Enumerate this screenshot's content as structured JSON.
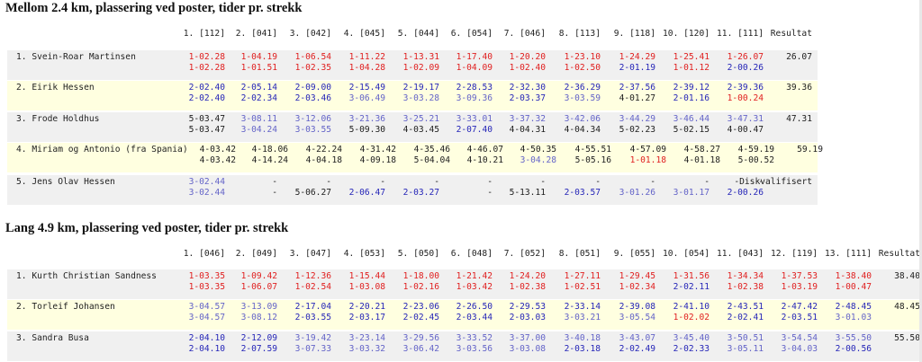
{
  "colors": {
    "red": "#e02020",
    "darkred": "#c21414",
    "navy": "#2626b8",
    "blue": "#4b4bd2",
    "lav": "#6464c8",
    "black": "#1e1e1e",
    "band_gray": "#f0f0f0",
    "band_yellow": "#ffffe0"
  },
  "sections": [
    {
      "title": "Mellom 2.4 km, plassering ved poster, tider pr. strekk",
      "headers": [
        "1. [112]",
        "2. [041]",
        "3. [042]",
        "4. [045]",
        "5. [044]",
        "6. [054]",
        "7. [046]",
        "8. [113]",
        "9. [118]",
        "10. [120]",
        "11. [111]",
        "Resultat"
      ],
      "rows": [
        {
          "band": "gray",
          "name": "1. Svein-Roar Martinsen",
          "line1": [
            [
              "1-02.28",
              "red"
            ],
            [
              "1-04.19",
              "red"
            ],
            [
              "1-06.54",
              "red"
            ],
            [
              "1-11.22",
              "red"
            ],
            [
              "1-13.31",
              "red"
            ],
            [
              "1-17.40",
              "red"
            ],
            [
              "1-20.20",
              "red"
            ],
            [
              "1-23.10",
              "red"
            ],
            [
              "1-24.29",
              "red"
            ],
            [
              "1-25.41",
              "red"
            ],
            [
              "1-26.07",
              "red"
            ],
            [
              "26.07",
              "black"
            ]
          ],
          "line2": [
            [
              "1-02.28",
              "red"
            ],
            [
              "1-01.51",
              "red"
            ],
            [
              "1-02.35",
              "red"
            ],
            [
              "1-04.28",
              "red"
            ],
            [
              "1-02.09",
              "red"
            ],
            [
              "1-04.09",
              "red"
            ],
            [
              "1-02.40",
              "red"
            ],
            [
              "1-02.50",
              "red"
            ],
            [
              "2-01.19",
              "navy"
            ],
            [
              "1-01.12",
              "red"
            ],
            [
              "2-00.26",
              "navy"
            ],
            [
              "",
              ""
            ]
          ]
        },
        {
          "band": "yellow",
          "name": "2. Eirik Hessen",
          "line1": [
            [
              "2-02.40",
              "navy"
            ],
            [
              "2-05.14",
              "navy"
            ],
            [
              "2-09.00",
              "navy"
            ],
            [
              "2-15.49",
              "navy"
            ],
            [
              "2-19.17",
              "navy"
            ],
            [
              "2-28.53",
              "navy"
            ],
            [
              "2-32.30",
              "navy"
            ],
            [
              "2-36.29",
              "navy"
            ],
            [
              "2-37.56",
              "navy"
            ],
            [
              "2-39.12",
              "navy"
            ],
            [
              "2-39.36",
              "navy"
            ],
            [
              "39.36",
              "black"
            ]
          ],
          "line2": [
            [
              "2-02.40",
              "navy"
            ],
            [
              "2-02.34",
              "navy"
            ],
            [
              "2-03.46",
              "navy"
            ],
            [
              "3-06.49",
              "lav"
            ],
            [
              "3-03.28",
              "lav"
            ],
            [
              "3-09.36",
              "lav"
            ],
            [
              "2-03.37",
              "navy"
            ],
            [
              "3-03.59",
              "lav"
            ],
            [
              "4-01.27",
              "black"
            ],
            [
              "2-01.16",
              "navy"
            ],
            [
              "1-00.24",
              "red"
            ],
            [
              "",
              ""
            ]
          ]
        },
        {
          "band": "gray",
          "name": "3. Frode Holdhus",
          "line1": [
            [
              "5-03.47",
              "black"
            ],
            [
              "3-08.11",
              "lav"
            ],
            [
              "3-12.06",
              "lav"
            ],
            [
              "3-21.36",
              "lav"
            ],
            [
              "3-25.21",
              "lav"
            ],
            [
              "3-33.01",
              "lav"
            ],
            [
              "3-37.32",
              "lav"
            ],
            [
              "3-42.06",
              "lav"
            ],
            [
              "3-44.29",
              "lav"
            ],
            [
              "3-46.44",
              "lav"
            ],
            [
              "3-47.31",
              "lav"
            ],
            [
              "47.31",
              "black"
            ]
          ],
          "line2": [
            [
              "5-03.47",
              "black"
            ],
            [
              "3-04.24",
              "lav"
            ],
            [
              "3-03.55",
              "lav"
            ],
            [
              "5-09.30",
              "black"
            ],
            [
              "4-03.45",
              "black"
            ],
            [
              "2-07.40",
              "navy"
            ],
            [
              "4-04.31",
              "black"
            ],
            [
              "4-04.34",
              "black"
            ],
            [
              "5-02.23",
              "black"
            ],
            [
              "5-02.15",
              "black"
            ],
            [
              "4-00.47",
              "black"
            ],
            [
              "",
              ""
            ]
          ]
        },
        {
          "band": "yellow",
          "name": "4. Miriam og Antonio (fra Spania)",
          "shift": 12,
          "line1": [
            [
              "4-03.42",
              "black"
            ],
            [
              "4-18.06",
              "black"
            ],
            [
              "4-22.24",
              "black"
            ],
            [
              "4-31.42",
              "black"
            ],
            [
              "4-35.46",
              "black"
            ],
            [
              "4-46.07",
              "black"
            ],
            [
              "4-50.35",
              "black"
            ],
            [
              "4-55.51",
              "black"
            ],
            [
              "4-57.09",
              "black"
            ],
            [
              "4-58.27",
              "black"
            ],
            [
              "4-59.19",
              "black"
            ],
            [
              "59.19",
              "black"
            ]
          ],
          "line2": [
            [
              "4-03.42",
              "black"
            ],
            [
              "4-14.24",
              "black"
            ],
            [
              "4-04.18",
              "black"
            ],
            [
              "4-09.18",
              "black"
            ],
            [
              "5-04.04",
              "black"
            ],
            [
              "4-10.21",
              "black"
            ],
            [
              "3-04.28",
              "lav"
            ],
            [
              "5-05.16",
              "black"
            ],
            [
              "1-01.18",
              "red"
            ],
            [
              "4-01.18",
              "black"
            ],
            [
              "5-00.52",
              "black"
            ],
            [
              "",
              ""
            ]
          ]
        },
        {
          "band": "gray",
          "name": "5. Jens Olav Hessen",
          "line1": [
            [
              "3-02.44",
              "lav"
            ],
            [
              "-",
              "black"
            ],
            [
              "-",
              "black"
            ],
            [
              "-",
              "black"
            ],
            [
              "-",
              "black"
            ],
            [
              "-",
              "black"
            ],
            [
              "-",
              "black"
            ],
            [
              "-",
              "black"
            ],
            [
              "-",
              "black"
            ],
            [
              "-",
              "black"
            ],
            [
              "-",
              "black"
            ],
            [
              "-Diskvalifisert",
              "black"
            ]
          ],
          "line2": [
            [
              "3-02.44",
              "lav"
            ],
            [
              "-",
              "black"
            ],
            [
              "5-06.27",
              "black"
            ],
            [
              "2-06.47",
              "navy"
            ],
            [
              "2-03.27",
              "navy"
            ],
            [
              "-",
              "black"
            ],
            [
              "5-13.11",
              "black"
            ],
            [
              "2-03.57",
              "navy"
            ],
            [
              "3-01.26",
              "lav"
            ],
            [
              "3-01.17",
              "lav"
            ],
            [
              "2-00.26",
              "navy"
            ],
            [
              "",
              ""
            ]
          ]
        }
      ]
    },
    {
      "title": "Lang 4.9 km, plassering ved poster, tider pr. strekk",
      "headers": [
        "1. [046]",
        "2. [049]",
        "3. [047]",
        "4. [053]",
        "5. [050]",
        "6. [048]",
        "7. [052]",
        "8. [051]",
        "9. [055]",
        "10. [054]",
        "11. [043]",
        "12. [119]",
        "13. [111]",
        "Resultat"
      ],
      "rows": [
        {
          "band": "gray",
          "name": "1. Kurth Christian Sandness",
          "line1": [
            [
              "1-03.35",
              "red"
            ],
            [
              "1-09.42",
              "red"
            ],
            [
              "1-12.36",
              "red"
            ],
            [
              "1-15.44",
              "red"
            ],
            [
              "1-18.00",
              "red"
            ],
            [
              "1-21.42",
              "red"
            ],
            [
              "1-24.20",
              "red"
            ],
            [
              "1-27.11",
              "red"
            ],
            [
              "1-29.45",
              "red"
            ],
            [
              "1-31.56",
              "red"
            ],
            [
              "1-34.34",
              "red"
            ],
            [
              "1-37.53",
              "red"
            ],
            [
              "1-38.40",
              "red"
            ],
            [
              "38.40",
              "black"
            ]
          ],
          "line2": [
            [
              "1-03.35",
              "red"
            ],
            [
              "1-06.07",
              "red"
            ],
            [
              "1-02.54",
              "red"
            ],
            [
              "1-03.08",
              "red"
            ],
            [
              "1-02.16",
              "red"
            ],
            [
              "1-03.42",
              "red"
            ],
            [
              "1-02.38",
              "red"
            ],
            [
              "1-02.51",
              "red"
            ],
            [
              "1-02.34",
              "red"
            ],
            [
              "2-02.11",
              "navy"
            ],
            [
              "1-02.38",
              "red"
            ],
            [
              "1-03.19",
              "red"
            ],
            [
              "1-00.47",
              "red"
            ],
            [
              "",
              ""
            ]
          ]
        },
        {
          "band": "yellow",
          "name": "2. Torleif Johansen",
          "line1": [
            [
              "3-04.57",
              "lav"
            ],
            [
              "3-13.09",
              "lav"
            ],
            [
              "2-17.04",
              "navy"
            ],
            [
              "2-20.21",
              "navy"
            ],
            [
              "2-23.06",
              "navy"
            ],
            [
              "2-26.50",
              "navy"
            ],
            [
              "2-29.53",
              "navy"
            ],
            [
              "2-33.14",
              "navy"
            ],
            [
              "2-39.08",
              "navy"
            ],
            [
              "2-41.10",
              "navy"
            ],
            [
              "2-43.51",
              "navy"
            ],
            [
              "2-47.42",
              "navy"
            ],
            [
              "2-48.45",
              "navy"
            ],
            [
              "48.45",
              "black"
            ]
          ],
          "line2": [
            [
              "3-04.57",
              "lav"
            ],
            [
              "3-08.12",
              "lav"
            ],
            [
              "2-03.55",
              "navy"
            ],
            [
              "2-03.17",
              "navy"
            ],
            [
              "2-02.45",
              "navy"
            ],
            [
              "2-03.44",
              "navy"
            ],
            [
              "2-03.03",
              "navy"
            ],
            [
              "3-03.21",
              "lav"
            ],
            [
              "3-05.54",
              "lav"
            ],
            [
              "1-02.02",
              "red"
            ],
            [
              "2-02.41",
              "navy"
            ],
            [
              "2-03.51",
              "navy"
            ],
            [
              "3-01.03",
              "lav"
            ],
            [
              "",
              ""
            ]
          ]
        },
        {
          "band": "gray",
          "name": "3. Sandra Busa",
          "line1": [
            [
              "2-04.10",
              "navy"
            ],
            [
              "2-12.09",
              "navy"
            ],
            [
              "3-19.42",
              "lav"
            ],
            [
              "3-23.14",
              "lav"
            ],
            [
              "3-29.56",
              "lav"
            ],
            [
              "3-33.52",
              "lav"
            ],
            [
              "3-37.00",
              "lav"
            ],
            [
              "3-40.18",
              "lav"
            ],
            [
              "3-43.07",
              "lav"
            ],
            [
              "3-45.40",
              "lav"
            ],
            [
              "3-50.51",
              "lav"
            ],
            [
              "3-54.54",
              "lav"
            ],
            [
              "3-55.50",
              "lav"
            ],
            [
              "55.50",
              "black"
            ]
          ],
          "line2": [
            [
              "2-04.10",
              "navy"
            ],
            [
              "2-07.59",
              "navy"
            ],
            [
              "3-07.33",
              "lav"
            ],
            [
              "3-03.32",
              "lav"
            ],
            [
              "3-06.42",
              "lav"
            ],
            [
              "3-03.56",
              "lav"
            ],
            [
              "3-03.08",
              "lav"
            ],
            [
              "2-03.18",
              "navy"
            ],
            [
              "2-02.49",
              "navy"
            ],
            [
              "2-02.33",
              "navy"
            ],
            [
              "3-05.11",
              "lav"
            ],
            [
              "3-04.03",
              "lav"
            ],
            [
              "2-00.56",
              "navy"
            ],
            [
              "",
              ""
            ]
          ]
        }
      ]
    }
  ]
}
